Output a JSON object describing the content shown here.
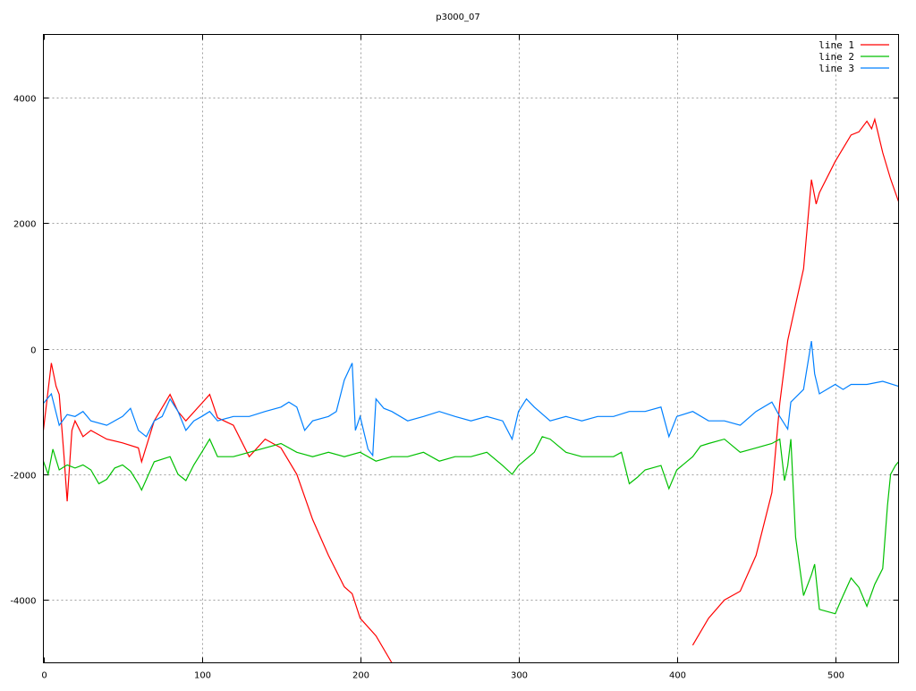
{
  "chart_data": {
    "type": "line",
    "title": "p3000_07",
    "xlabel": "",
    "ylabel": "",
    "xlim": [
      0,
      540
    ],
    "ylim": [
      -5000,
      5000
    ],
    "xticks": [
      0,
      100,
      200,
      300,
      400,
      500
    ],
    "yticks": [
      -4000,
      -2000,
      0,
      2000,
      4000
    ],
    "xtick_labels": [
      "0",
      "100",
      "200",
      "300",
      "400",
      "500"
    ],
    "ytick_labels": [
      "-4000",
      "-2000",
      "0",
      "2000",
      "4000"
    ],
    "grid": true,
    "legend": "top-right",
    "series": [
      {
        "name": "line 1",
        "color": "#ff0000",
        "points": [
          [
            0,
            -1300
          ],
          [
            5,
            -230
          ],
          [
            8,
            -600
          ],
          [
            10,
            -730
          ],
          [
            13,
            -1700
          ],
          [
            15,
            -2430
          ],
          [
            18,
            -1300
          ],
          [
            20,
            -1150
          ],
          [
            25,
            -1400
          ],
          [
            30,
            -1300
          ],
          [
            40,
            -1440
          ],
          [
            50,
            -1500
          ],
          [
            60,
            -1580
          ],
          [
            62,
            -1800
          ],
          [
            70,
            -1150
          ],
          [
            80,
            -730
          ],
          [
            85,
            -1000
          ],
          [
            90,
            -1150
          ],
          [
            100,
            -870
          ],
          [
            105,
            -730
          ],
          [
            110,
            -1100
          ],
          [
            120,
            -1220
          ],
          [
            130,
            -1720
          ],
          [
            140,
            -1440
          ],
          [
            150,
            -1580
          ],
          [
            160,
            -2000
          ],
          [
            170,
            -2720
          ],
          [
            180,
            -3290
          ],
          [
            190,
            -3790
          ],
          [
            195,
            -3900
          ],
          [
            200,
            -4290
          ],
          [
            210,
            -4570
          ],
          [
            220,
            -5000
          ],
          [
            222,
            null
          ],
          [
            408,
            null
          ],
          [
            410,
            -4720
          ],
          [
            420,
            -4290
          ],
          [
            430,
            -4000
          ],
          [
            440,
            -3860
          ],
          [
            450,
            -3290
          ],
          [
            460,
            -2290
          ],
          [
            465,
            -870
          ],
          [
            470,
            130
          ],
          [
            475,
            700
          ],
          [
            480,
            1270
          ],
          [
            485,
            2690
          ],
          [
            488,
            2300
          ],
          [
            490,
            2480
          ],
          [
            500,
            2980
          ],
          [
            510,
            3400
          ],
          [
            515,
            3450
          ],
          [
            520,
            3620
          ],
          [
            523,
            3500
          ],
          [
            525,
            3650
          ],
          [
            530,
            3120
          ],
          [
            535,
            2700
          ],
          [
            540,
            2340
          ]
        ]
      },
      {
        "name": "line 2",
        "color": "#00c000",
        "points": [
          [
            0,
            -1790
          ],
          [
            3,
            -2000
          ],
          [
            6,
            -1600
          ],
          [
            10,
            -1930
          ],
          [
            15,
            -1850
          ],
          [
            20,
            -1900
          ],
          [
            25,
            -1850
          ],
          [
            30,
            -1930
          ],
          [
            35,
            -2150
          ],
          [
            40,
            -2080
          ],
          [
            45,
            -1900
          ],
          [
            50,
            -1850
          ],
          [
            55,
            -1950
          ],
          [
            60,
            -2150
          ],
          [
            62,
            -2250
          ],
          [
            70,
            -1800
          ],
          [
            80,
            -1720
          ],
          [
            85,
            -2000
          ],
          [
            90,
            -2100
          ],
          [
            95,
            -1850
          ],
          [
            100,
            -1650
          ],
          [
            105,
            -1440
          ],
          [
            110,
            -1720
          ],
          [
            120,
            -1720
          ],
          [
            130,
            -1650
          ],
          [
            140,
            -1580
          ],
          [
            150,
            -1510
          ],
          [
            160,
            -1650
          ],
          [
            170,
            -1720
          ],
          [
            180,
            -1650
          ],
          [
            190,
            -1720
          ],
          [
            200,
            -1650
          ],
          [
            210,
            -1790
          ],
          [
            220,
            -1720
          ],
          [
            230,
            -1720
          ],
          [
            240,
            -1650
          ],
          [
            250,
            -1790
          ],
          [
            260,
            -1720
          ],
          [
            270,
            -1720
          ],
          [
            280,
            -1650
          ],
          [
            290,
            -1860
          ],
          [
            296,
            -2000
          ],
          [
            300,
            -1860
          ],
          [
            310,
            -1650
          ],
          [
            315,
            -1400
          ],
          [
            320,
            -1440
          ],
          [
            330,
            -1650
          ],
          [
            340,
            -1720
          ],
          [
            350,
            -1720
          ],
          [
            360,
            -1720
          ],
          [
            365,
            -1650
          ],
          [
            370,
            -2150
          ],
          [
            375,
            -2050
          ],
          [
            380,
            -1930
          ],
          [
            390,
            -1860
          ],
          [
            395,
            -2230
          ],
          [
            400,
            -1930
          ],
          [
            410,
            -1720
          ],
          [
            415,
            -1550
          ],
          [
            420,
            -1510
          ],
          [
            430,
            -1440
          ],
          [
            440,
            -1650
          ],
          [
            450,
            -1580
          ],
          [
            460,
            -1510
          ],
          [
            465,
            -1440
          ],
          [
            468,
            -2100
          ],
          [
            470,
            -1860
          ],
          [
            472,
            -1440
          ],
          [
            475,
            -3000
          ],
          [
            480,
            -3930
          ],
          [
            485,
            -3600
          ],
          [
            487,
            -3430
          ],
          [
            490,
            -4150
          ],
          [
            500,
            -4220
          ],
          [
            505,
            -3930
          ],
          [
            510,
            -3650
          ],
          [
            515,
            -3800
          ],
          [
            520,
            -4100
          ],
          [
            525,
            -3750
          ],
          [
            530,
            -3500
          ],
          [
            533,
            -2500
          ],
          [
            535,
            -2000
          ],
          [
            538,
            -1860
          ],
          [
            540,
            -1800
          ]
        ]
      },
      {
        "name": "line 3",
        "color": "#0080ff",
        "points": [
          [
            0,
            -870
          ],
          [
            5,
            -720
          ],
          [
            10,
            -1220
          ],
          [
            15,
            -1050
          ],
          [
            20,
            -1080
          ],
          [
            25,
            -1000
          ],
          [
            30,
            -1150
          ],
          [
            40,
            -1220
          ],
          [
            50,
            -1080
          ],
          [
            55,
            -950
          ],
          [
            60,
            -1300
          ],
          [
            65,
            -1400
          ],
          [
            70,
            -1150
          ],
          [
            75,
            -1080
          ],
          [
            80,
            -800
          ],
          [
            85,
            -1000
          ],
          [
            90,
            -1300
          ],
          [
            95,
            -1150
          ],
          [
            100,
            -1080
          ],
          [
            105,
            -1000
          ],
          [
            110,
            -1150
          ],
          [
            120,
            -1080
          ],
          [
            130,
            -1080
          ],
          [
            140,
            -1000
          ],
          [
            150,
            -930
          ],
          [
            155,
            -850
          ],
          [
            160,
            -930
          ],
          [
            165,
            -1300
          ],
          [
            170,
            -1150
          ],
          [
            180,
            -1080
          ],
          [
            185,
            -1000
          ],
          [
            190,
            -500
          ],
          [
            195,
            -230
          ],
          [
            197,
            -1300
          ],
          [
            200,
            -1080
          ],
          [
            205,
            -1600
          ],
          [
            208,
            -1700
          ],
          [
            210,
            -800
          ],
          [
            215,
            -950
          ],
          [
            220,
            -1000
          ],
          [
            230,
            -1150
          ],
          [
            240,
            -1080
          ],
          [
            250,
            -1000
          ],
          [
            260,
            -1080
          ],
          [
            270,
            -1150
          ],
          [
            280,
            -1080
          ],
          [
            290,
            -1150
          ],
          [
            296,
            -1440
          ],
          [
            300,
            -1000
          ],
          [
            305,
            -800
          ],
          [
            310,
            -930
          ],
          [
            320,
            -1150
          ],
          [
            330,
            -1080
          ],
          [
            340,
            -1150
          ],
          [
            350,
            -1080
          ],
          [
            360,
            -1080
          ],
          [
            370,
            -1000
          ],
          [
            380,
            -1000
          ],
          [
            390,
            -930
          ],
          [
            395,
            -1400
          ],
          [
            400,
            -1080
          ],
          [
            410,
            -1000
          ],
          [
            420,
            -1150
          ],
          [
            430,
            -1150
          ],
          [
            440,
            -1220
          ],
          [
            450,
            -1000
          ],
          [
            460,
            -850
          ],
          [
            465,
            -1080
          ],
          [
            470,
            -1280
          ],
          [
            472,
            -850
          ],
          [
            480,
            -650
          ],
          [
            485,
            120
          ],
          [
            487,
            -400
          ],
          [
            490,
            -720
          ],
          [
            500,
            -570
          ],
          [
            505,
            -650
          ],
          [
            510,
            -570
          ],
          [
            520,
            -570
          ],
          [
            530,
            -520
          ],
          [
            540,
            -600
          ]
        ]
      }
    ]
  }
}
